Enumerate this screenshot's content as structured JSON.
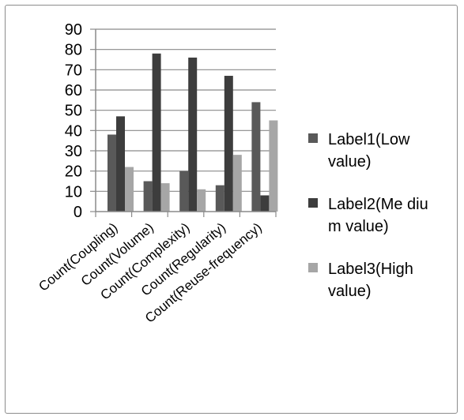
{
  "chart_data": {
    "type": "bar",
    "title": "",
    "xlabel": "",
    "ylabel": "",
    "categories": [
      "Count(Coupling)",
      "Count(Volume)",
      "Count(Complexity)",
      "Count(Regularity)",
      "Count(Reuse-frequency)"
    ],
    "series": [
      {
        "name": "Label1(Low value)",
        "legend_lines": [
          "Label1(Low",
          "value)"
        ],
        "color": "#595959",
        "values": [
          38,
          15,
          20,
          13,
          54
        ]
      },
      {
        "name": "Label2(Medium value)",
        "legend_lines": [
          "Label2(Me diu",
          "m value)"
        ],
        "color": "#3d3d3d",
        "values": [
          47,
          78,
          76,
          67,
          8
        ]
      },
      {
        "name": "Label3(High value)",
        "legend_lines": [
          "Label3(High",
          "value)"
        ],
        "color": "#a6a6a6",
        "values": [
          22,
          14,
          11,
          28,
          45
        ]
      }
    ],
    "ylim": [
      0,
      90
    ],
    "yticks": [
      0,
      10,
      20,
      30,
      40,
      50,
      60,
      70,
      80,
      90
    ],
    "grid": true,
    "legend_position": "right"
  }
}
